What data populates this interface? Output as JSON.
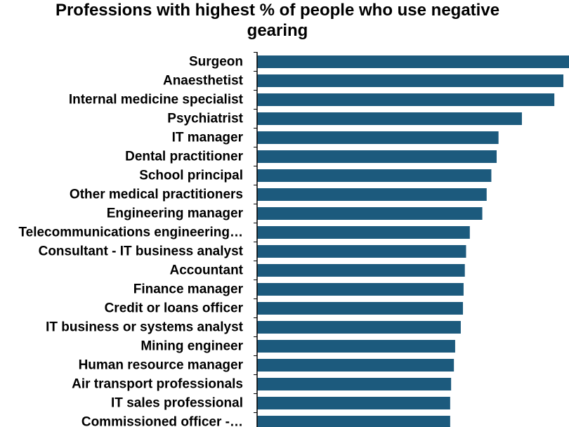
{
  "chart_data": {
    "type": "bar",
    "orientation": "horizontal",
    "title": "Professions with highest % of people who use negative gearing",
    "xlabel": "",
    "ylabel": "",
    "categories": [
      "Surgeon",
      "Anaesthetist",
      "Internal medicine specialist",
      "Psychiatrist",
      "IT manager",
      "Dental practitioner",
      "School principal",
      "Other medical practitioners",
      "Engineering manager",
      "Telecommunications engineering…",
      "Consultant - IT business analyst",
      "Accountant",
      "Finance manager",
      "Credit or loans officer",
      "IT business or systems analyst",
      "Mining engineer",
      "Human resource manager",
      "Air transport professionals",
      "IT sales professional",
      "Commissioned officer -…"
    ],
    "values": [
      100,
      98.2,
      95.3,
      84.9,
      77.4,
      76.8,
      75.1,
      73.6,
      72.2,
      68.2,
      67.0,
      66.6,
      66.2,
      66.0,
      65.3,
      63.5,
      63.1,
      62.2,
      61.9,
      61.9
    ],
    "xlim": [
      0,
      100
    ],
    "grid": false,
    "legend": "none",
    "bar_color": "#1c5a7d",
    "axis_color": "#000000"
  }
}
